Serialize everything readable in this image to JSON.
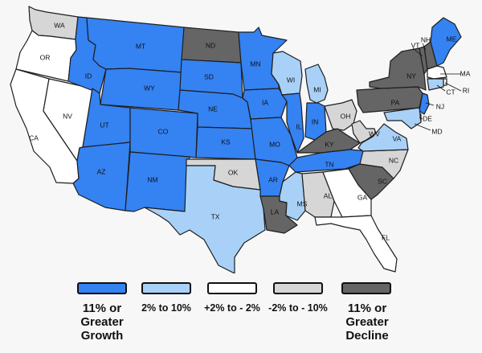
{
  "colors": {
    "growth_high": "#3582f2",
    "growth_low": "#a9d1f7",
    "stable": "#ffffff",
    "decline_low": "#d6d6d6",
    "decline_high": "#656565",
    "ocean": "#f7f7f7"
  },
  "legend": [
    {
      "key": "growth_high",
      "label": "11% or Greater Growth"
    },
    {
      "key": "growth_low",
      "label": "2% to 10%"
    },
    {
      "key": "stable",
      "label": "+2% to - 2%"
    },
    {
      "key": "decline_low",
      "label": "-2% to - 10%"
    },
    {
      "key": "decline_high",
      "label": "11% or Greater Decline"
    }
  ],
  "states": [
    {
      "abbr": "WA",
      "category": "decline_low"
    },
    {
      "abbr": "OR",
      "category": "stable"
    },
    {
      "abbr": "CA",
      "category": "stable"
    },
    {
      "abbr": "NV",
      "category": "stable"
    },
    {
      "abbr": "ID",
      "category": "growth_high"
    },
    {
      "abbr": "MT",
      "category": "growth_high"
    },
    {
      "abbr": "WY",
      "category": "growth_high"
    },
    {
      "abbr": "UT",
      "category": "growth_high"
    },
    {
      "abbr": "AZ",
      "category": "growth_high"
    },
    {
      "abbr": "CO",
      "category": "growth_high"
    },
    {
      "abbr": "NM",
      "category": "growth_high"
    },
    {
      "abbr": "ND",
      "category": "decline_high"
    },
    {
      "abbr": "SD",
      "category": "growth_high"
    },
    {
      "abbr": "NE",
      "category": "growth_high"
    },
    {
      "abbr": "KS",
      "category": "growth_high"
    },
    {
      "abbr": "OK",
      "category": "decline_low"
    },
    {
      "abbr": "TX",
      "category": "growth_low"
    },
    {
      "abbr": "MN",
      "category": "growth_high"
    },
    {
      "abbr": "IA",
      "category": "growth_high"
    },
    {
      "abbr": "MO",
      "category": "growth_high"
    },
    {
      "abbr": "AR",
      "category": "growth_high"
    },
    {
      "abbr": "LA",
      "category": "decline_high"
    },
    {
      "abbr": "WI",
      "category": "growth_low"
    },
    {
      "abbr": "IL",
      "category": "growth_high"
    },
    {
      "abbr": "MI",
      "category": "growth_low"
    },
    {
      "abbr": "IN",
      "category": "growth_high"
    },
    {
      "abbr": "OH",
      "category": "decline_low"
    },
    {
      "abbr": "KY",
      "category": "decline_high"
    },
    {
      "abbr": "TN",
      "category": "growth_high"
    },
    {
      "abbr": "MS",
      "category": "growth_low"
    },
    {
      "abbr": "AL",
      "category": "decline_low"
    },
    {
      "abbr": "GA",
      "category": "stable"
    },
    {
      "abbr": "FL",
      "category": "stable"
    },
    {
      "abbr": "SC",
      "category": "decline_high"
    },
    {
      "abbr": "NC",
      "category": "decline_low"
    },
    {
      "abbr": "VA",
      "category": "growth_low"
    },
    {
      "abbr": "WV",
      "category": "decline_low"
    },
    {
      "abbr": "PA",
      "category": "decline_high"
    },
    {
      "abbr": "NY",
      "category": "decline_high"
    },
    {
      "abbr": "VT",
      "category": "decline_high"
    },
    {
      "abbr": "NH",
      "category": "decline_high"
    },
    {
      "abbr": "ME",
      "category": "growth_high"
    },
    {
      "abbr": "MA",
      "category": "stable"
    },
    {
      "abbr": "RI",
      "category": "stable"
    },
    {
      "abbr": "CT",
      "category": "growth_low"
    },
    {
      "abbr": "NJ",
      "category": "growth_high"
    },
    {
      "abbr": "DE",
      "category": "growth_high"
    },
    {
      "abbr": "MD",
      "category": "growth_low"
    }
  ]
}
